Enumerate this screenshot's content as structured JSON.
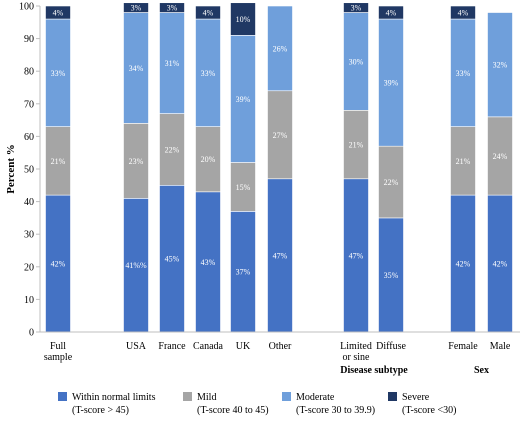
{
  "chart_data": {
    "type": "bar",
    "stacked": true,
    "ylabel": "Percent %",
    "ylim": [
      0,
      100
    ],
    "yticks": [
      0,
      10,
      20,
      30,
      40,
      50,
      60,
      70,
      80,
      90,
      100
    ],
    "grid": false,
    "legend_position": "bottom",
    "categories": [
      [
        "Full",
        "sample"
      ],
      [
        "USA"
      ],
      [
        "France"
      ],
      [
        "Canada"
      ],
      [
        "UK"
      ],
      [
        "Other"
      ],
      [
        "Limited",
        "or sine"
      ],
      [
        "Diffuse"
      ],
      [
        "Female"
      ],
      [
        "Male"
      ]
    ],
    "group_labels": [
      {
        "label": "Disease subtype",
        "categories": [
          6,
          7
        ]
      },
      {
        "label": "Sex",
        "categories": [
          8,
          9
        ]
      }
    ],
    "series": [
      {
        "name": "Within normal limits",
        "sub": "(T-score > 45)",
        "color": "#4472C4",
        "values": [
          42,
          41,
          45,
          43,
          37,
          47,
          47,
          35,
          42,
          42
        ],
        "labels": [
          "42%",
          "41%%",
          "45%",
          "43%",
          "37%",
          "47%",
          "47%",
          "35%",
          "42%",
          "42%"
        ]
      },
      {
        "name": "Mild",
        "sub": "(T-score 40 to 45)",
        "color": "#A5A5A5",
        "values": [
          21,
          23,
          22,
          20,
          15,
          27,
          21,
          22,
          21,
          24
        ],
        "labels": [
          "21%",
          "23%",
          "22%",
          "20%",
          "15%",
          "27%",
          "21%",
          "22%",
          "21%",
          "24%"
        ]
      },
      {
        "name": "Moderate",
        "sub": "(T-score 30 to 39.9)",
        "color": "#6F9FDB",
        "values": [
          33,
          34,
          31,
          33,
          39,
          26,
          30,
          39,
          33,
          32
        ],
        "labels": [
          "33%",
          "34%",
          "31%",
          "33%",
          "39%",
          "26%",
          "30%",
          "39%",
          "33%",
          "32%"
        ]
      },
      {
        "name": "Severe",
        "sub": "(T-score <30)",
        "color": "#203864",
        "values": [
          4,
          3,
          3,
          4,
          10,
          0,
          3,
          4,
          4,
          0
        ],
        "labels": [
          "4%",
          "3%",
          "3%",
          "4%",
          "10%",
          "",
          "3%",
          "4%",
          "4%",
          ""
        ]
      }
    ]
  }
}
